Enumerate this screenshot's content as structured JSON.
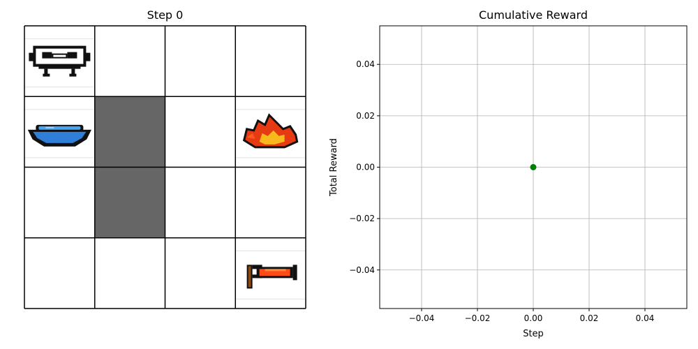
{
  "grid_panel": {
    "title": "Step 0",
    "rows": 4,
    "cols": 4,
    "cells": [
      [
        "robot",
        "empty",
        "empty",
        "empty"
      ],
      [
        "water",
        "wall",
        "empty",
        "fire"
      ],
      [
        "empty",
        "wall",
        "empty",
        "empty"
      ],
      [
        "empty",
        "empty",
        "empty",
        "extinguisher"
      ]
    ],
    "colors": {
      "wall": "#666666",
      "line": "#000000",
      "background": "#ffffff"
    },
    "icons": {
      "robot": "robot-icon",
      "water": "water-bowl-icon",
      "fire": "fire-icon",
      "extinguisher": "fire-extinguisher-icon"
    }
  },
  "chart_data": {
    "type": "scatter",
    "title": "Cumulative Reward",
    "xlabel": "Step",
    "ylabel": "Total Reward",
    "x": [
      0
    ],
    "y": [
      0
    ],
    "xlim": [
      -0.055,
      0.055
    ],
    "ylim": [
      -0.055,
      0.055
    ],
    "xticks": [
      -0.04,
      -0.02,
      0.0,
      0.02,
      0.04
    ],
    "yticks": [
      -0.04,
      -0.02,
      0.0,
      0.02,
      0.04
    ],
    "xtick_labels": [
      "−0.04",
      "−0.02",
      "0.00",
      "0.02",
      "0.04"
    ],
    "ytick_labels": [
      "−0.04",
      "−0.02",
      "0.00",
      "0.02",
      "0.04"
    ],
    "grid": true,
    "point_color": "#008000",
    "grid_color": "#b0b0b0"
  }
}
